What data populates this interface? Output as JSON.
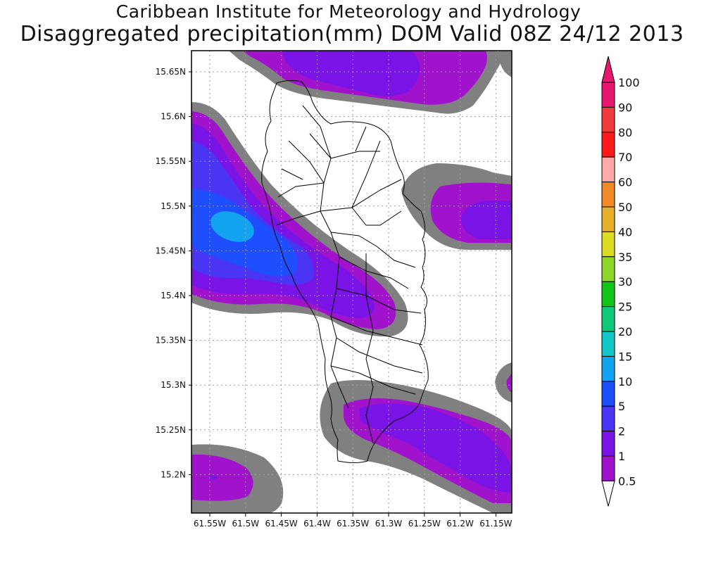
{
  "titles": {
    "line1": "Caribbean Institute for Meteorology and Hydrology",
    "line2": "Disaggregated precipitation(mm) DOM Valid 08Z 24/12 2013"
  },
  "axes": {
    "lat_labels": [
      "15.65N",
      "15.6N",
      "15.55N",
      "15.5N",
      "15.45N",
      "15.4N",
      "15.35N",
      "15.3N",
      "15.25N",
      "15.2N"
    ],
    "lon_labels": [
      "61.55W",
      "61.5W",
      "61.45W",
      "61.4W",
      "61.35W",
      "61.3W",
      "61.25W",
      "61.2W",
      "61.15W"
    ]
  },
  "colorbar": {
    "levels": [
      {
        "label": "100",
        "color": "#e8176e"
      },
      {
        "label": "90",
        "color": "#f23b3b"
      },
      {
        "label": "80",
        "color": "#ff1a1a"
      },
      {
        "label": "70",
        "color": "#ffaaaa"
      },
      {
        "label": "60",
        "color": "#f08a28"
      },
      {
        "label": "50",
        "color": "#e6b02a"
      },
      {
        "label": "40",
        "color": "#dcdc22"
      },
      {
        "label": "35",
        "color": "#8ed62a"
      },
      {
        "label": "30",
        "color": "#11c417"
      },
      {
        "label": "25",
        "color": "#10c87c"
      },
      {
        "label": "20",
        "color": "#11c6c6"
      },
      {
        "label": "15",
        "color": "#12a4f0"
      },
      {
        "label": "10",
        "color": "#1d4fff"
      },
      {
        "label": "5",
        "color": "#4a35f5"
      },
      {
        "label": "2",
        "color": "#7a14e6"
      },
      {
        "label": "1",
        "color": "#a012cc"
      },
      {
        "label": "0.5",
        "color": "#808080"
      }
    ]
  },
  "colors": {
    "grey": "#808080",
    "magenta": "#a012cc",
    "purple": "#7a14e6",
    "violet": "#4a35f5",
    "blue": "#1d4fff",
    "cyan": "#12a4f0"
  }
}
